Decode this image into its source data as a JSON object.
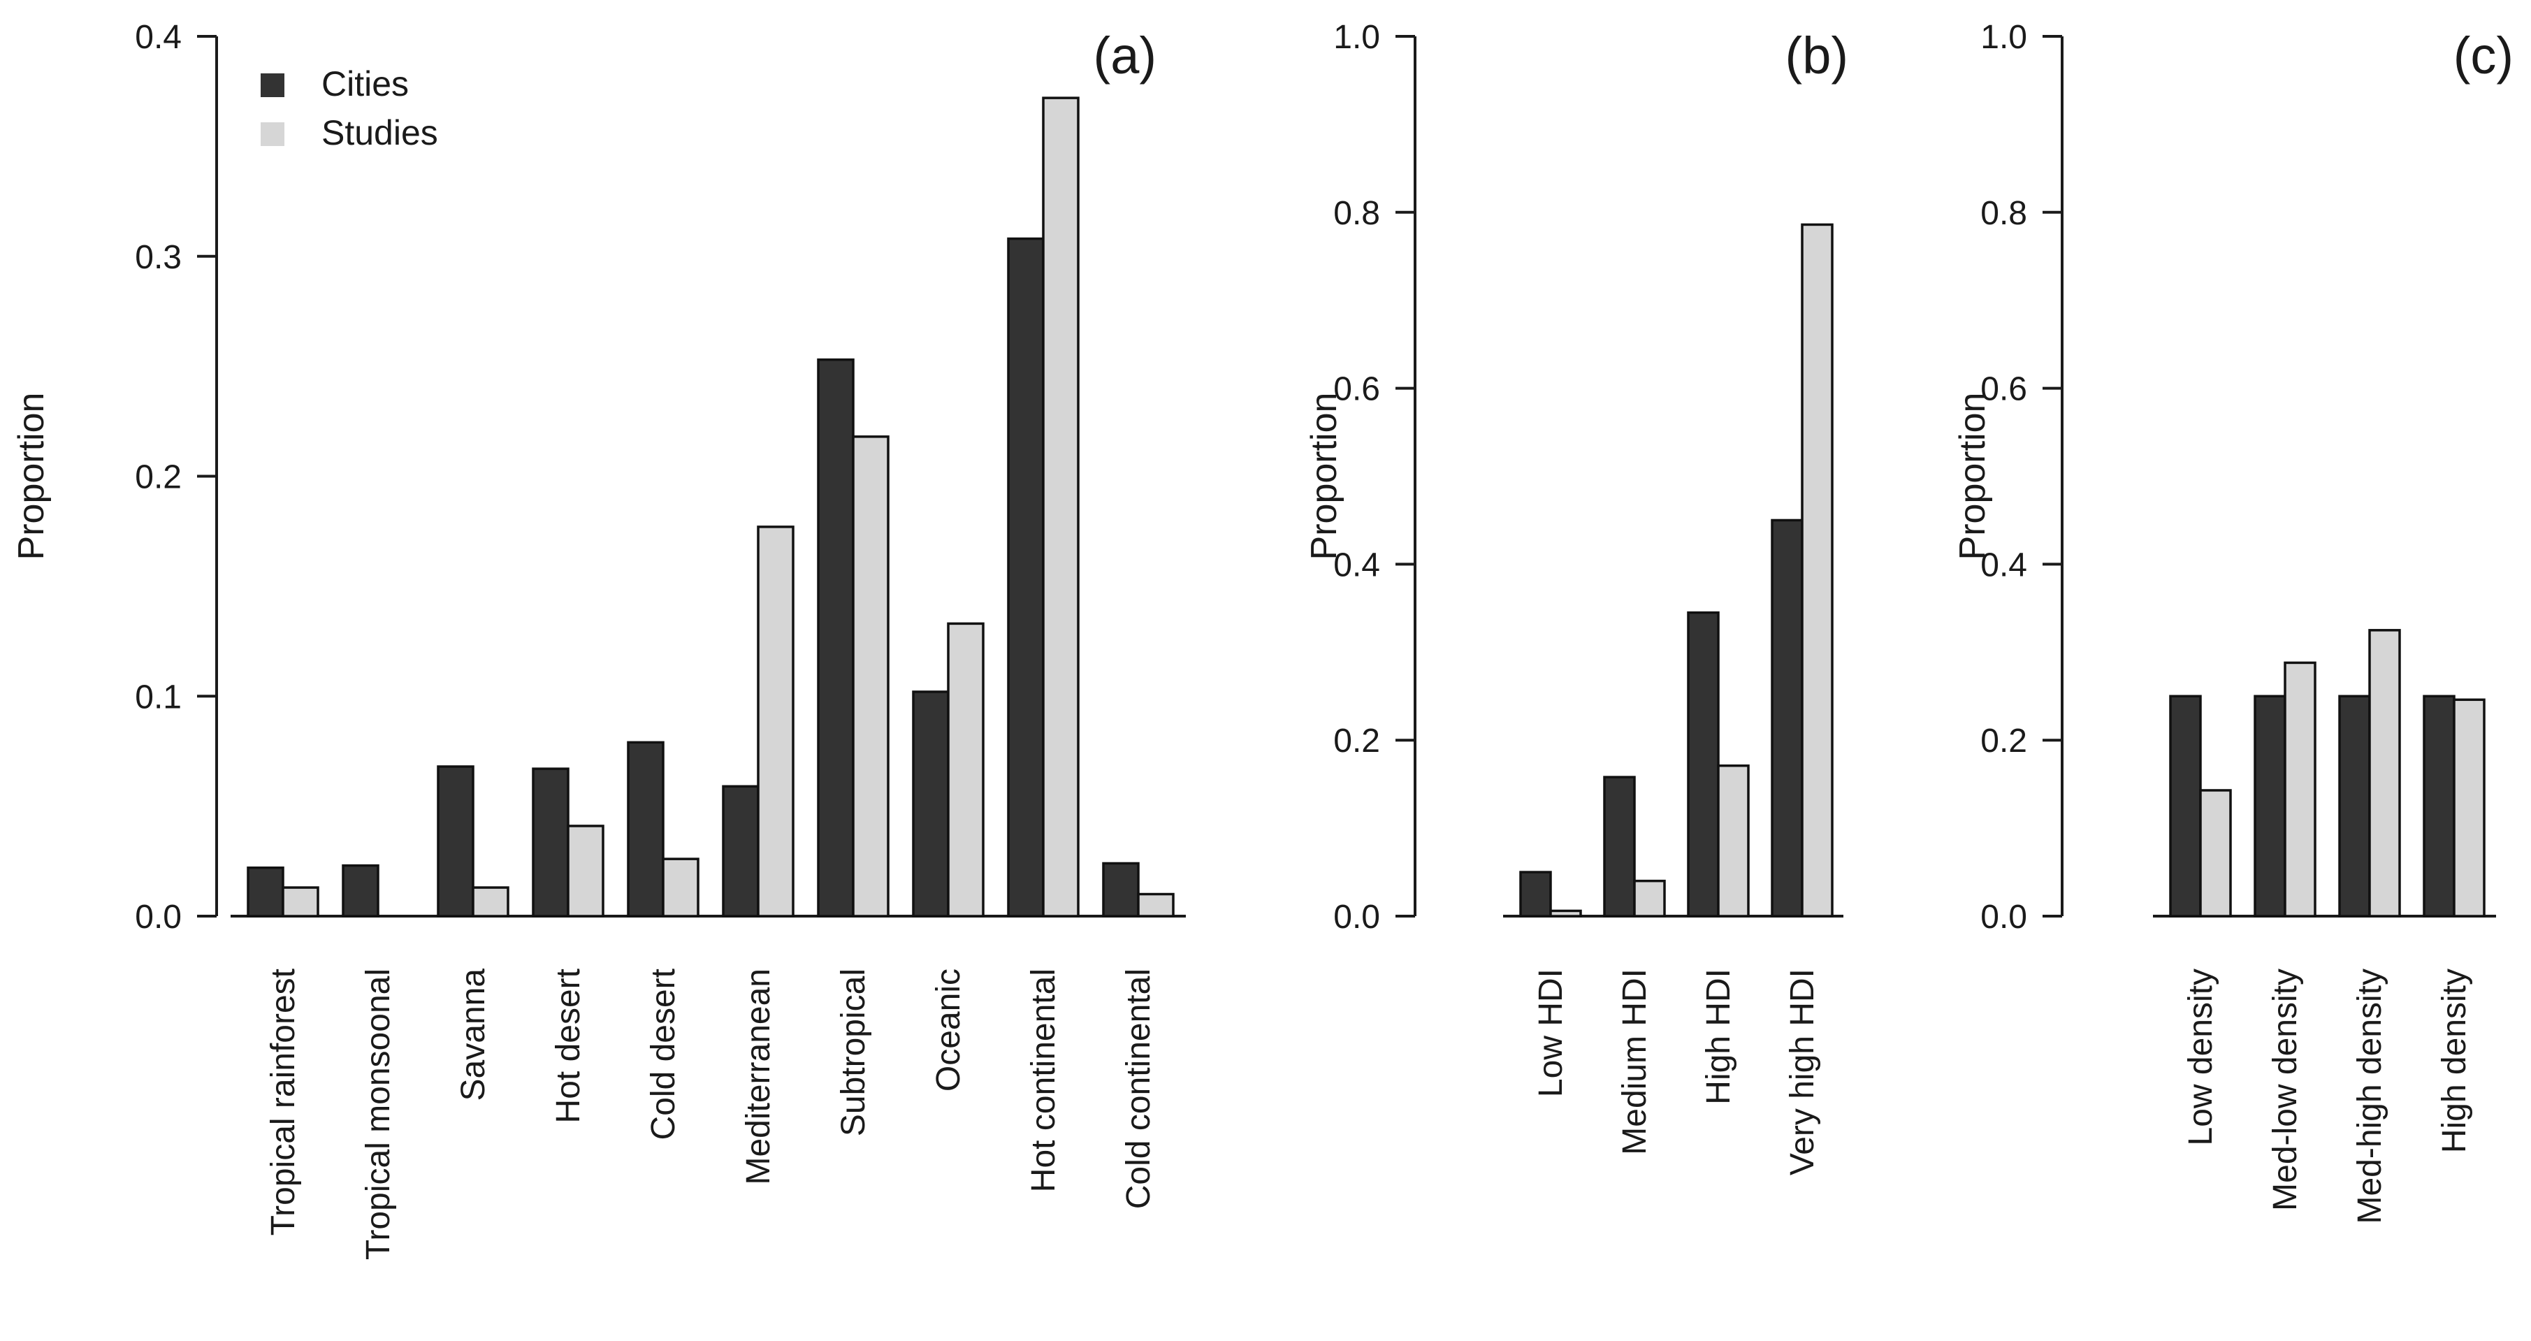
{
  "colors": {
    "cities": "#333333",
    "studies": "#d6d6d6"
  },
  "legend": [
    {
      "key": "cities",
      "label": "Cities"
    },
    {
      "key": "studies",
      "label": "Studies"
    }
  ],
  "chart_data": [
    {
      "type": "bar",
      "panel": "(a)",
      "ylabel": "Proportion",
      "ylim": [
        0,
        0.4
      ],
      "yticks": [
        "0.0",
        "0.1",
        "0.2",
        "0.3",
        "0.4"
      ],
      "categories": [
        "Tropical rainforest",
        "Tropical monsoonal",
        "Savanna",
        "Hot desert",
        "Cold desert",
        "Mediterranean",
        "Subtropical",
        "Oceanic",
        "Hot continental",
        "Cold continental"
      ],
      "series": [
        {
          "name": "Cities",
          "values": [
            0.022,
            0.023,
            0.068,
            0.067,
            0.079,
            0.059,
            0.253,
            0.102,
            0.308,
            0.024
          ]
        },
        {
          "name": "Studies",
          "values": [
            0.013,
            0.0,
            0.013,
            0.041,
            0.026,
            0.177,
            0.218,
            0.133,
            0.372,
            0.01
          ]
        }
      ],
      "legend_position": "top-left"
    },
    {
      "type": "bar",
      "panel": "(b)",
      "ylabel": "Proportion",
      "ylim": [
        0,
        1.0
      ],
      "yticks": [
        "0.0",
        "0.2",
        "0.4",
        "0.6",
        "0.8",
        "1.0"
      ],
      "categories": [
        "Low HDI",
        "Medium HDI",
        "High HDI",
        "Very high HDI"
      ],
      "series": [
        {
          "name": "Cities",
          "values": [
            0.05,
            0.158,
            0.345,
            0.45
          ]
        },
        {
          "name": "Studies",
          "values": [
            0.006,
            0.04,
            0.171,
            0.786
          ]
        }
      ]
    },
    {
      "type": "bar",
      "panel": "(c)",
      "ylabel": "Proportion",
      "ylim": [
        0,
        1.0
      ],
      "yticks": [
        "0.0",
        "0.2",
        "0.4",
        "0.6",
        "0.8",
        "1.0"
      ],
      "categories": [
        "Low density",
        "Med-low density",
        "Med-high density",
        "High density"
      ],
      "series": [
        {
          "name": "Cities",
          "values": [
            0.25,
            0.25,
            0.25,
            0.25
          ]
        },
        {
          "name": "Studies",
          "values": [
            0.143,
            0.288,
            0.325,
            0.246
          ]
        }
      ]
    }
  ]
}
